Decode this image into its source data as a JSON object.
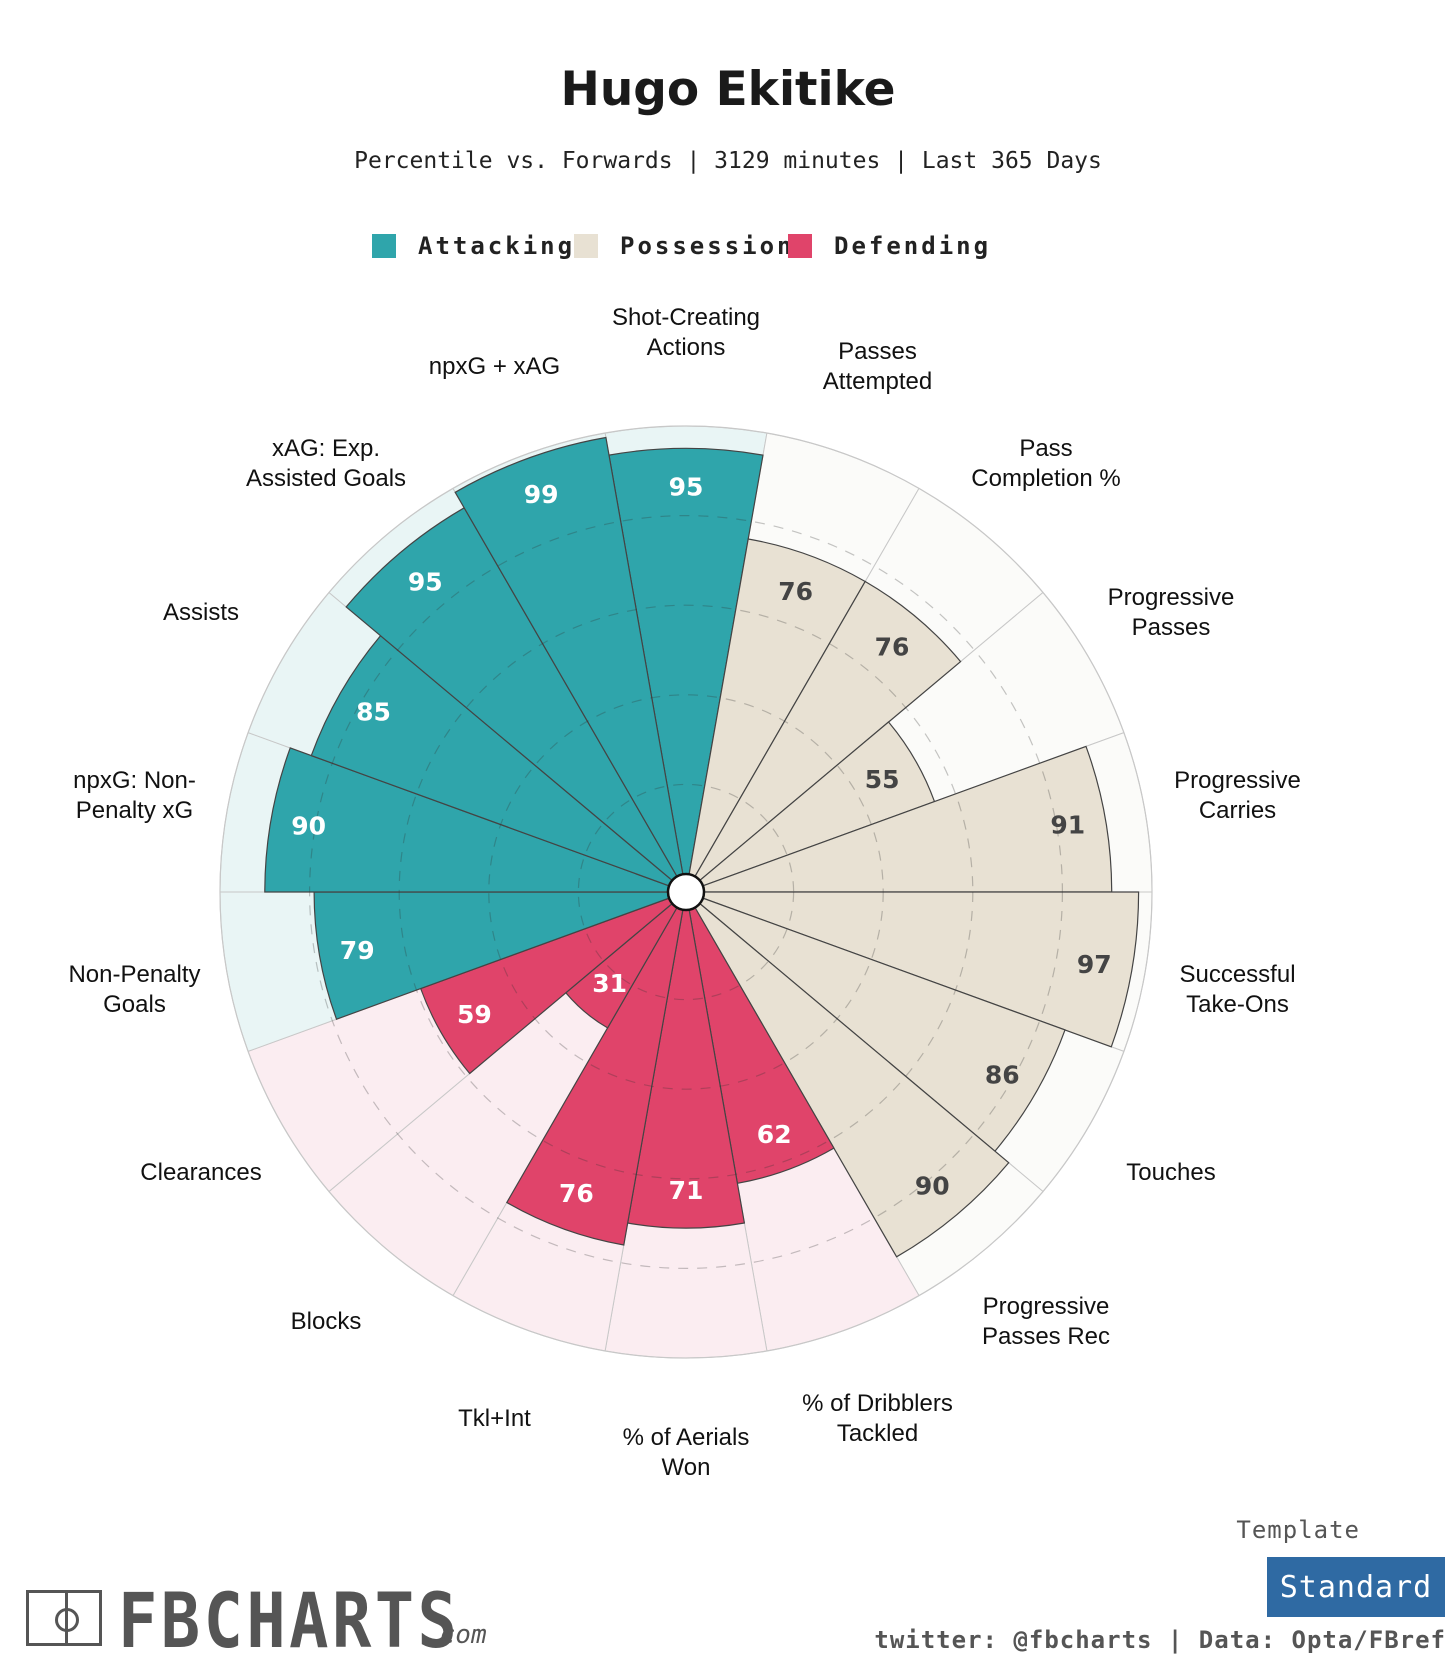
{
  "header": {
    "title": "Hugo Ekitike",
    "subtitle": "Percentile vs. Forwards | 3129 minutes | Last 365 Days"
  },
  "legend": [
    {
      "label": "Attacking",
      "color": "#2fa5ab"
    },
    {
      "label": "Possession",
      "color": "#e8e1d3"
    },
    {
      "label": "Defending",
      "color": "#e0446a"
    }
  ],
  "colors": {
    "Attacking": {
      "fill": "#2fa5ab",
      "background": "#e9f5f5",
      "value_text": "#ffffff"
    },
    "Possession": {
      "fill": "#e8e1d3",
      "background": "#fbfbf9",
      "value_text": "#444444"
    },
    "Defending": {
      "fill": "#e0446a",
      "background": "#fbedf1",
      "value_text": "#ffffff"
    }
  },
  "chart_data": {
    "type": "bar",
    "subtype": "polar",
    "ylim": [
      0,
      100
    ],
    "grid": true,
    "categories": [
      {
        "label": "Shot-Creating Actions",
        "group": "Attacking",
        "value": 95
      },
      {
        "label": "Passes Attempted",
        "group": "Possession",
        "value": 76
      },
      {
        "label": "Pass Completion %",
        "group": "Possession",
        "value": 76
      },
      {
        "label": "Progressive Passes",
        "group": "Possession",
        "value": 55
      },
      {
        "label": "Progressive Carries",
        "group": "Possession",
        "value": 91
      },
      {
        "label": "Successful Take-Ons",
        "group": "Possession",
        "value": 97
      },
      {
        "label": "Touches",
        "group": "Possession",
        "value": 86
      },
      {
        "label": "Progressive Passes Rec",
        "group": "Possession",
        "value": 90
      },
      {
        "label": "% of Dribblers Tackled",
        "group": "Defending",
        "value": 62
      },
      {
        "label": "% of Aerials Won",
        "group": "Defending",
        "value": 71
      },
      {
        "label": "Tkl+Int",
        "group": "Defending",
        "value": 76
      },
      {
        "label": "Blocks",
        "group": "Defending",
        "value": 31
      },
      {
        "label": "Clearances",
        "group": "Defending",
        "value": 59
      },
      {
        "label": "Non-Penalty Goals",
        "group": "Attacking",
        "value": 79
      },
      {
        "label": "npxG: Non-Penalty xG",
        "group": "Attacking",
        "value": 90
      },
      {
        "label": "Assists",
        "group": "Attacking",
        "value": 85
      },
      {
        "label": "xAG: Exp. Assisted Goals",
        "group": "Attacking",
        "value": 95
      },
      {
        "label": "npxG + xAG",
        "group": "Attacking",
        "value": 99
      }
    ],
    "label_lines": [
      [
        "Shot-Creating",
        "Actions"
      ],
      [
        "Passes",
        "Attempted"
      ],
      [
        "Pass",
        "Completion %"
      ],
      [
        "Progressive",
        "Passes"
      ],
      [
        "Progressive",
        "Carries"
      ],
      [
        "Successful",
        "Take-Ons"
      ],
      [
        "Touches"
      ],
      [
        "Progressive",
        "Passes Rec"
      ],
      [
        "% of Dribblers",
        "Tackled"
      ],
      [
        "% of Aerials",
        "Won"
      ],
      [
        "Tkl+Int"
      ],
      [
        "Blocks"
      ],
      [
        "Clearances"
      ],
      [
        "Non-Penalty",
        "Goals"
      ],
      [
        "npxG: Non-",
        "Penalty xG"
      ],
      [
        "Assists"
      ],
      [
        "xAG: Exp.",
        "Assisted Goals"
      ],
      [
        "npxG + xAG"
      ]
    ]
  },
  "branding": {
    "logo_text": "FBCHARTS",
    "logo_suffix": ".com",
    "template_label": "Template",
    "template_value": "Standard",
    "credit": "twitter: @fbcharts | Data: Opta/FBref"
  }
}
